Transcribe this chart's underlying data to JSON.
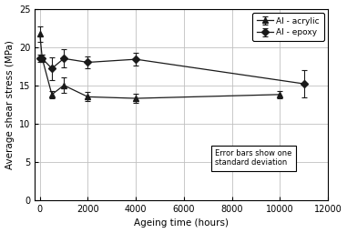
{
  "acrylic_x": [
    0,
    100,
    500,
    1000,
    2000,
    4000,
    10000
  ],
  "acrylic_y": [
    21.7,
    18.5,
    13.8,
    15.0,
    13.5,
    13.3,
    13.8
  ],
  "acrylic_yerr": [
    1.0,
    0.5,
    0.5,
    1.0,
    0.6,
    0.6,
    0.5
  ],
  "epoxy_x": [
    0,
    100,
    500,
    1000,
    2000,
    4000,
    11000
  ],
  "epoxy_y": [
    18.5,
    18.5,
    17.2,
    18.5,
    18.0,
    18.4,
    15.2
  ],
  "epoxy_yerr": [
    0.5,
    0.5,
    1.5,
    1.2,
    0.8,
    0.8,
    1.8
  ],
  "xlabel": "Ageing time (hours)",
  "ylabel": "Average shear stress (MPa)",
  "xlim": [
    -200,
    12000
  ],
  "ylim": [
    0,
    25
  ],
  "xticks": [
    0,
    2000,
    4000,
    6000,
    8000,
    10000,
    12000
  ],
  "yticks": [
    0,
    5,
    10,
    15,
    20,
    25
  ],
  "legend_acrylic": "Al - acrylic",
  "legend_epoxy": "Al - epoxy",
  "annotation": "Error bars show one\nstandard deviation",
  "bg_color": "#ffffff",
  "plot_bg_color": "#ffffff",
  "line_color": "#000000",
  "grid_color": "#c0c0c0",
  "marker_color": "#1a1a1a"
}
